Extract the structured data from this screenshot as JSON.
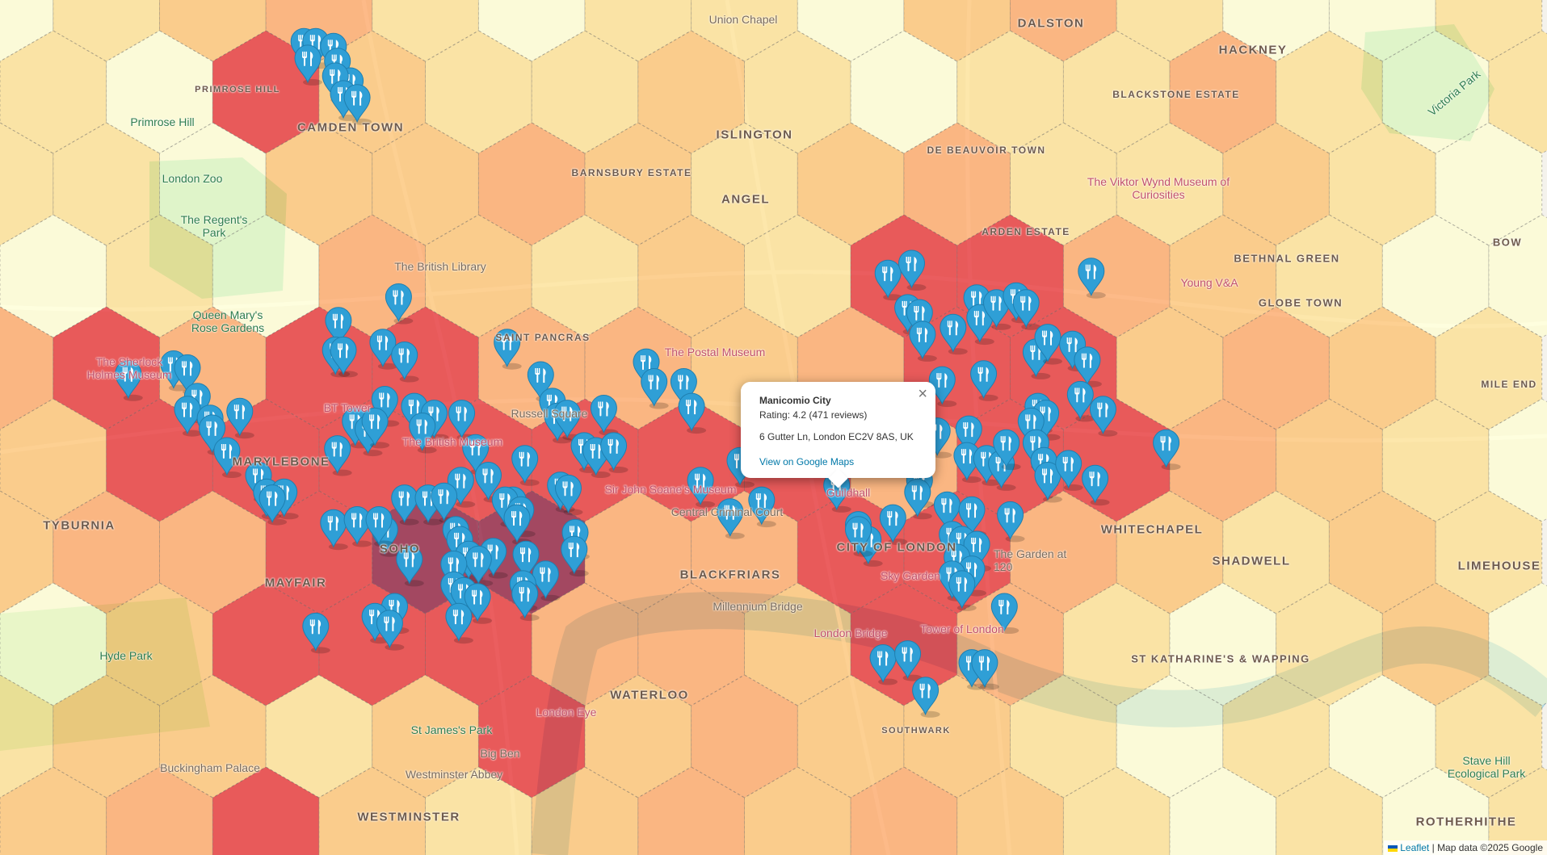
{
  "map": {
    "hex_density_levels": [
      "012310110231001",
      "104211210113101",
      "110223212311210",
      "010321214432100",
      "343443323442321",
      "244444443443210",
      "233455334432121",
      "024443324310120",
      "122124232210101",
      "234212323210101"
    ],
    "density_colors": [
      "#ffffcc",
      "#fed976",
      "#feb24c",
      "#fd8d3c",
      "#e31a1c",
      "#800026"
    ],
    "marker_color": "#2f9fd6",
    "marker_icon": "fork-knife-icon",
    "area_labels": [
      "CAMDEN TOWN",
      "ISLINGTON",
      "DALSTON",
      "HACKNEY",
      "ANGEL",
      "MARYLEBONE",
      "SOHO",
      "MAYFAIR",
      "BLACKFRIARS",
      "CITY OF LONDON",
      "WHITECHAPEL",
      "SHADWELL",
      "LIMEHOUSE",
      "WATERLOO",
      "WESTMINSTER",
      "TYBURNIA",
      "BETHNAL GREEN",
      "GLOBE TOWN",
      "ST KATHARINE'S & WAPPING",
      "ARDEN ESTATE",
      "BARNSBURY ESTATE",
      "BLACKSTONE ESTATE",
      "DE BEAUVOIR TOWN",
      "SAINT PANCRAS",
      "ROTHERHITHE",
      "BOW",
      "MILE END",
      "PRIMROSE HILL",
      "SOUTHWARK"
    ],
    "poi_labels": [
      "Union Chapel",
      "The British Library",
      "The Postal Museum",
      "Sir John Soane's Museum",
      "Sky Garden",
      "Tower of London",
      "London Bridge",
      "Millennium Bridge",
      "London Eye",
      "Big Ben",
      "Westminster Abbey",
      "Buckingham Palace",
      "Young V&A",
      "The Viktor Wynd Museum of Curiosities",
      "The Garden at 120",
      "BT Tower",
      "The British Museum",
      "Russell Square",
      "Central Criminal Court",
      "Guildhall",
      "The Sherlock Holmes Museum"
    ],
    "park_labels": [
      "Primrose Hill",
      "London Zoo",
      "The Regent's Park",
      "Queen Mary's Rose Gardens",
      "Hyde Park",
      "St James's Park",
      "Victoria Park",
      "Stave Hill Ecological Park"
    ]
  },
  "popup": {
    "title": "Manicomio City",
    "rating": "Rating: 4.2 (471 reviews)",
    "address": "6 Gutter Ln, London EC2V 8AS, UK",
    "link": "View on Google Maps",
    "close": "×"
  },
  "attribution": {
    "leaflet": "Leaflet",
    "separator": "|",
    "text": "Map data ©2025 Google"
  }
}
